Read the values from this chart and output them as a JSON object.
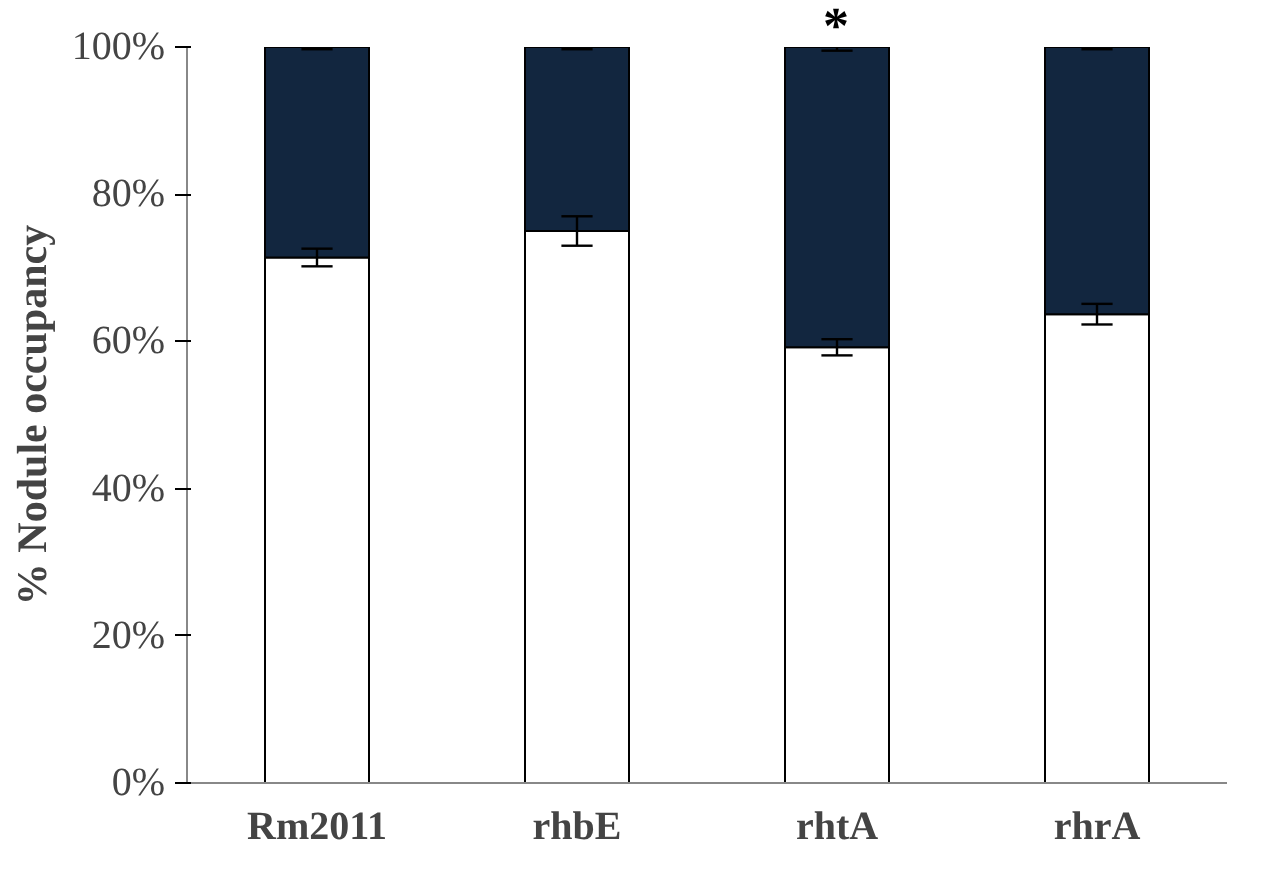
{
  "chart_data": {
    "type": "bar",
    "stacked": true,
    "ylabel": "% Nodule occupancy",
    "categories": [
      "Rm2011",
      "rhbE",
      "rhtA",
      "rhrA"
    ],
    "series": [
      {
        "color": "#ffffff",
        "values": [
          71.4,
          75,
          59.2,
          63.7
        ],
        "errors": [
          1.2,
          2,
          1.1,
          1.4
        ]
      },
      {
        "color": "#12263f",
        "values": [
          28.6,
          25,
          40.8,
          36.3
        ],
        "errors": [
          0.3,
          0.3,
          0.5,
          0.3
        ]
      }
    ],
    "ylim": [
      0,
      100
    ],
    "yticks": [
      {
        "value": 0,
        "label": "0%"
      },
      {
        "value": 20,
        "label": "20%"
      },
      {
        "value": 40,
        "label": "40%"
      },
      {
        "value": 60,
        "label": "60%"
      },
      {
        "value": 80,
        "label": "80%"
      },
      {
        "value": 100,
        "label": "100%"
      }
    ],
    "annotations": [
      {
        "text": "*",
        "x": "rhtA",
        "y": 100
      }
    ],
    "grid": false
  }
}
